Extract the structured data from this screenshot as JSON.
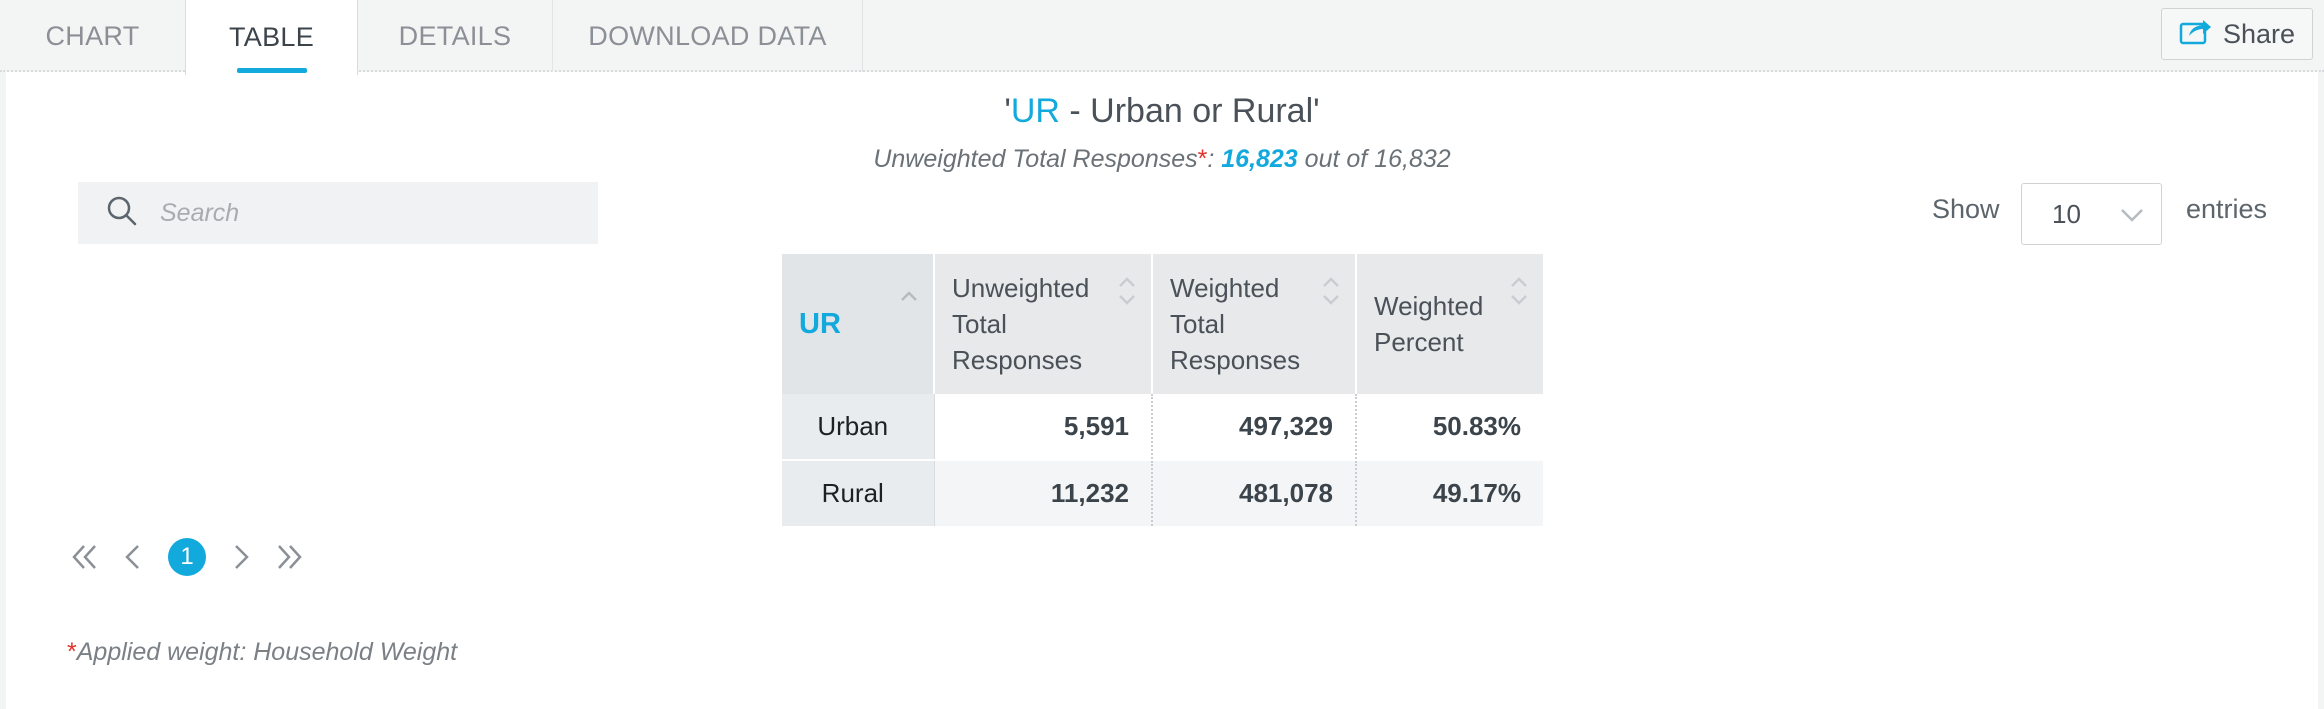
{
  "tabs": [
    {
      "label": "CHART",
      "active": false
    },
    {
      "label": "TABLE",
      "active": true
    },
    {
      "label": "DETAILS",
      "active": false
    },
    {
      "label": "DOWNLOAD DATA",
      "active": false
    }
  ],
  "share": {
    "label": "Share",
    "icon": "share-icon"
  },
  "header": {
    "quote_open": "'",
    "var_code": "UR",
    "var_desc": " - Urban or Rural'",
    "subtitle_prefix": "Unweighted Total Responses",
    "subtitle_star": "*",
    "subtitle_colon": ": ",
    "responses": "16,823",
    "subtitle_mid": " out of ",
    "total": "16,832"
  },
  "search": {
    "placeholder": "Search",
    "value": "",
    "icon": "search-icon"
  },
  "length": {
    "show": "Show",
    "value": "10",
    "entries": "entries",
    "icon": "chevron-down-icon"
  },
  "table": {
    "columns": [
      "UR",
      "Unweighted Total Responses",
      "Weighted Total Responses",
      "Weighted Percent"
    ],
    "col_lines": [
      [
        "UR"
      ],
      [
        "Unweighted",
        "Total",
        "Responses"
      ],
      [
        "Weighted",
        "Total",
        "Responses"
      ],
      [
        "Weighted",
        "Percent"
      ]
    ],
    "rows": [
      [
        "Urban",
        "5,591",
        "497,329",
        "50.83%"
      ],
      [
        "Rural",
        "11,232",
        "481,078",
        "49.17%"
      ]
    ]
  },
  "pagination": {
    "current": "1",
    "icons": [
      "first-page-icon",
      "prev-page-icon",
      "next-page-icon",
      "last-page-icon"
    ]
  },
  "footnote": {
    "star": "*",
    "text": "Applied weight: Household Weight"
  },
  "colors": {
    "accent": "#12a9dd",
    "required": "#e5332a"
  }
}
